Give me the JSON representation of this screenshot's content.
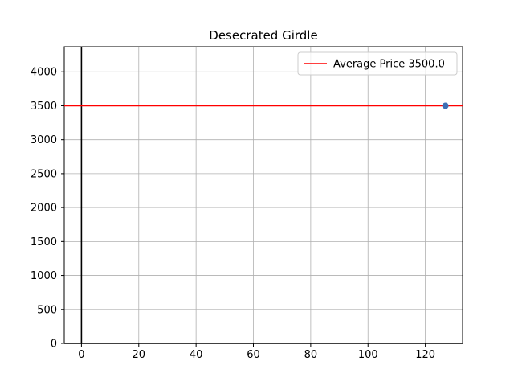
{
  "chart_data": {
    "type": "scatter",
    "title": "Desecrated Girdle",
    "xlabel": "",
    "ylabel": "",
    "xlim": [
      -6,
      133
    ],
    "ylim": [
      0,
      4370
    ],
    "x_ticks": [
      0,
      20,
      40,
      60,
      80,
      100,
      120
    ],
    "y_ticks": [
      0,
      500,
      1000,
      1500,
      2000,
      2500,
      3000,
      3500,
      4000
    ],
    "grid": true,
    "legend_position": "top-right",
    "points": [
      {
        "x": 127,
        "y": 3500
      }
    ],
    "average_line": {
      "y": 3500,
      "label": "Average Price 3500.0",
      "color": "#ff0000"
    },
    "point_color": "#3b6fb5",
    "axis_line_color": "#000000"
  }
}
